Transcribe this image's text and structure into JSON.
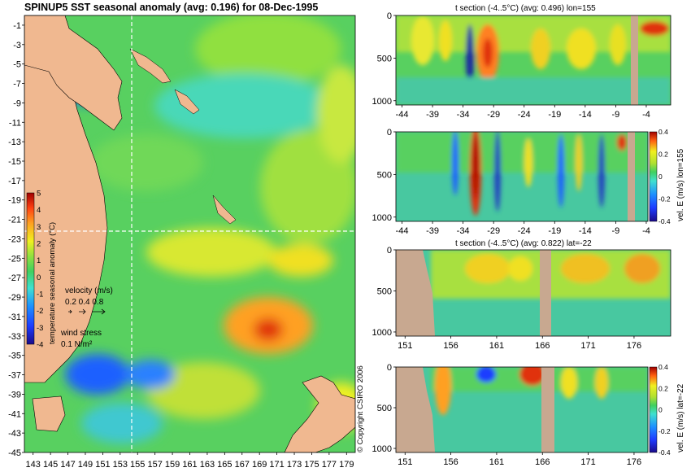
{
  "colors": {
    "land": "#f0b890",
    "land_section": "#c8a890",
    "grid_line": "#ffffff",
    "vector": "#e040c0",
    "colormap": [
      "#1a0a8a",
      "#1e3cff",
      "#1e90ff",
      "#40e0d0",
      "#40d060",
      "#90e040",
      "#f0f020",
      "#ffa020",
      "#ff4010",
      "#a00000"
    ]
  },
  "chart_data": [
    {
      "type": "heatmap",
      "title": "SPINUP5 SST seasonal anomaly (avg: 0.196) for 08-Dec-1995",
      "x_ticks": [
        "143",
        "145",
        "147",
        "149",
        "151",
        "153",
        "155",
        "157",
        "159",
        "161",
        "163",
        "165",
        "167",
        "169",
        "171",
        "173",
        "175",
        "177",
        "179"
      ],
      "y_ticks": [
        "-1",
        "-3",
        "-5",
        "-7",
        "-9",
        "-11",
        "-13",
        "-15",
        "-17",
        "-19",
        "-21",
        "-23",
        "-25",
        "-27",
        "-29",
        "-31",
        "-33",
        "-35",
        "-37",
        "-39",
        "-41",
        "-43",
        "-45"
      ],
      "xlim": [
        142,
        180
      ],
      "ylim": [
        -45,
        0
      ],
      "grid_lines": {
        "lon": 155,
        "lat": -22
      },
      "colorbar": {
        "label": "temperature seasonal anomaly (°C)",
        "ticks": [
          "5",
          "4",
          "3",
          "2",
          "1",
          "0",
          "-1",
          "-2",
          "-3",
          "-4"
        ],
        "range": [
          -4,
          5
        ]
      },
      "velocity_legend": {
        "label": "velocity (m/s)",
        "values": "0.2 0.4 0.8"
      },
      "wind_legend": {
        "label": "wind stress",
        "value": "0.1 N/m²"
      }
    },
    {
      "type": "heatmap",
      "title": "t section (-4..5°C) (avg: 0.496) lon=155",
      "x_ticks": [
        "-44",
        "-39",
        "-34",
        "-29",
        "-24",
        "-19",
        "-14",
        "-9",
        "-4"
      ],
      "y_ticks": [
        "0",
        "500",
        "1000"
      ],
      "xlim": [
        -45,
        0
      ],
      "ylim": [
        1050,
        0
      ]
    },
    {
      "type": "heatmap",
      "x_ticks": [
        "-44",
        "-39",
        "-34",
        "-29",
        "-24",
        "-19",
        "-14",
        "-9",
        "-4"
      ],
      "y_ticks": [
        "0",
        "500",
        "1000"
      ],
      "xlim": [
        -45,
        0
      ],
      "ylim": [
        1050,
        0
      ],
      "colorbar": {
        "label": "vel. E (m/s) lon=155",
        "ticks": [
          "0.4",
          "0.2",
          "0",
          "-0.2",
          "-0.4"
        ],
        "range": [
          -0.4,
          0.4
        ]
      }
    },
    {
      "type": "heatmap",
      "title": "t section (-4..5°C) (avg: 0.822) lat=-22",
      "x_ticks": [
        "151",
        "156",
        "161",
        "166",
        "171",
        "176"
      ],
      "y_ticks": [
        "0",
        "500",
        "1000"
      ],
      "xlim": [
        150,
        180
      ],
      "ylim": [
        1050,
        0
      ]
    },
    {
      "type": "heatmap",
      "x_ticks": [
        "151",
        "156",
        "161",
        "166",
        "171",
        "176"
      ],
      "y_ticks": [
        "0",
        "500",
        "1000"
      ],
      "xlim": [
        150,
        180
      ],
      "ylim": [
        1050,
        0
      ],
      "colorbar": {
        "label": "vel. E (m/s) lat=-22",
        "ticks": [
          "0.4",
          "0.2",
          "0",
          "-0.2",
          "-0.4"
        ],
        "range": [
          -0.4,
          0.4
        ]
      }
    }
  ],
  "copyright": "© Copyright CSIRO 2006"
}
